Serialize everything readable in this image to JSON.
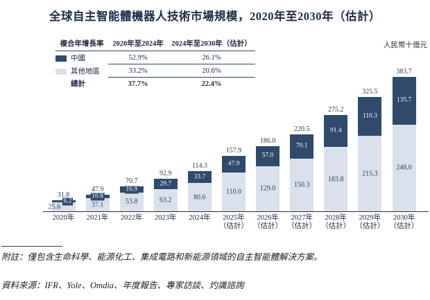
{
  "title": "全球自主智能體機器人技術市場規模，2020年至2030年（估計）",
  "unit_label": "人民幣十億元",
  "colors": {
    "china": "#2F4A6B",
    "other": "#DAE1ED",
    "text": "#2B3A55",
    "table_line": "#2C4368"
  },
  "legend_table": {
    "header": [
      "複合年增長率",
      "2020年至2024年",
      "2024年至2030年（估計）"
    ],
    "rows": [
      {
        "label": "中國",
        "cagr_2020_2024": "52.9%",
        "cagr_2024_2030": "26.1%"
      },
      {
        "label": "其他地區",
        "cagr_2020_2024": "33.2%",
        "cagr_2024_2030": "20.6%"
      },
      {
        "label": "總計",
        "cagr_2020_2024": "37.7%",
        "cagr_2024_2030": "22.4%"
      }
    ]
  },
  "chart_data": {
    "type": "bar",
    "stacked": true,
    "title": "全球自主智能體機器人技術市場規模，2020年至2030年（估計）",
    "ylabel": "人民幣十億元",
    "ylim": [
      0,
      390
    ],
    "grid": false,
    "legend_position": "top-left",
    "categories": [
      "2020年",
      "2021年",
      "2022年",
      "2023年",
      "2024年",
      "2025年",
      "2026年",
      "2027年",
      "2028年",
      "2029年",
      "2030年"
    ],
    "category_notes": [
      "",
      "",
      "",
      "",
      "",
      "（估計）",
      "（估計）",
      "（估計）",
      "（估計）",
      "（估計）",
      "（估計）"
    ],
    "series": [
      {
        "name": "中國",
        "color": "#2F4A6B",
        "values": [
          6.2,
          10.8,
          16.9,
          29.7,
          33.7,
          47.9,
          57.0,
          70.1,
          91.4,
          110.3,
          135.7
        ],
        "labels": [
          "6.2",
          "10.8",
          "16.9",
          "29.7",
          "33.7",
          "47.9",
          "57.0",
          "70.1",
          "91.4",
          "110.3",
          "135.7"
        ]
      },
      {
        "name": "其他地區",
        "color": "#DAE1ED",
        "values": [
          25.6,
          37.1,
          53.8,
          63.2,
          80.6,
          110.0,
          129.0,
          150.3,
          183.8,
          215.3,
          248.0
        ],
        "labels": [
          "25.6",
          "37.1",
          "53.8",
          "63.2",
          "80.6",
          "110.0",
          "129.0",
          "150.3",
          "183.8",
          "215.3",
          "248.0"
        ]
      }
    ],
    "totals": [
      "31.8",
      "47.9",
      "70.7",
      "92.9",
      "114.3",
      "157.9",
      "186.0",
      "220.5",
      "275.2",
      "325.5",
      "383.7"
    ]
  },
  "footnotes": {
    "note": "附註：僅包含生命科學、能源化工、集成電路和新能源領域的自主智能體解決方案。",
    "source": "資料來源：IFR、Yole、Omdia、年度報告、專家訪談、灼識諮詢"
  }
}
